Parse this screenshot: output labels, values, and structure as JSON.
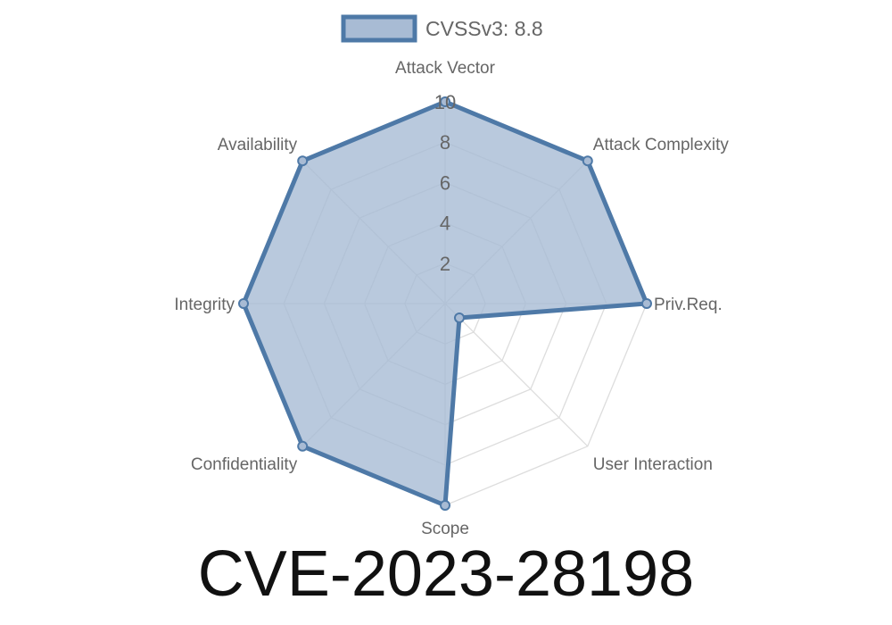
{
  "chart_data": {
    "type": "radar",
    "title": "CVE-2023-28198",
    "axes": [
      "Attack Vector",
      "Attack Complexity",
      "Priv.Req.",
      "User Interaction",
      "Scope",
      "Confidentiality",
      "Integrity",
      "Availability"
    ],
    "series": [
      {
        "name": "CVSSv3: 8.8",
        "values": [
          10,
          10,
          10,
          1,
          10,
          10,
          10,
          10
        ],
        "color": "#4e79a7",
        "fill": "#a8bbd4"
      }
    ],
    "rlim": [
      0,
      10
    ],
    "ticks": [
      "2",
      "4",
      "6",
      "8",
      "10"
    ],
    "grid": true,
    "legend": "top"
  }
}
